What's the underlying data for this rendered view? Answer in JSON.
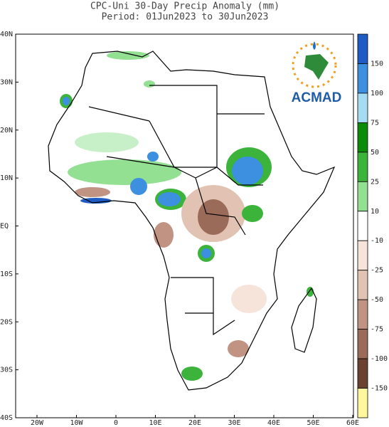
{
  "title": {
    "line1": "CPC-Uni 30-Day Precip Anomaly (mm)",
    "line2": "Period: 01Jun2023 to 30Jun2023"
  },
  "latitude_labels": [
    "40N",
    "30N",
    "20N",
    "10N",
    "EQ",
    "10S",
    "20S",
    "30S",
    "40S"
  ],
  "longitude_labels": [
    "20W",
    "10W",
    "0",
    "10E",
    "20E",
    "30E",
    "40E",
    "50E",
    "60E"
  ],
  "colorbar": {
    "labels": [
      150,
      100,
      75,
      50,
      25,
      10,
      -10,
      -25,
      -50,
      -75,
      -100,
      -150
    ],
    "colors": [
      "#1e5cc4",
      "#3d8fe0",
      "#a6dcf2",
      "#0a8c0a",
      "#3cb43c",
      "#93e093",
      "#ffffff",
      "#f6e3da",
      "#e2c3b3",
      "#c19383",
      "#9b6b5a",
      "#6b4232",
      "#fff79e"
    ]
  },
  "logo": {
    "text": "ACMAD"
  }
}
